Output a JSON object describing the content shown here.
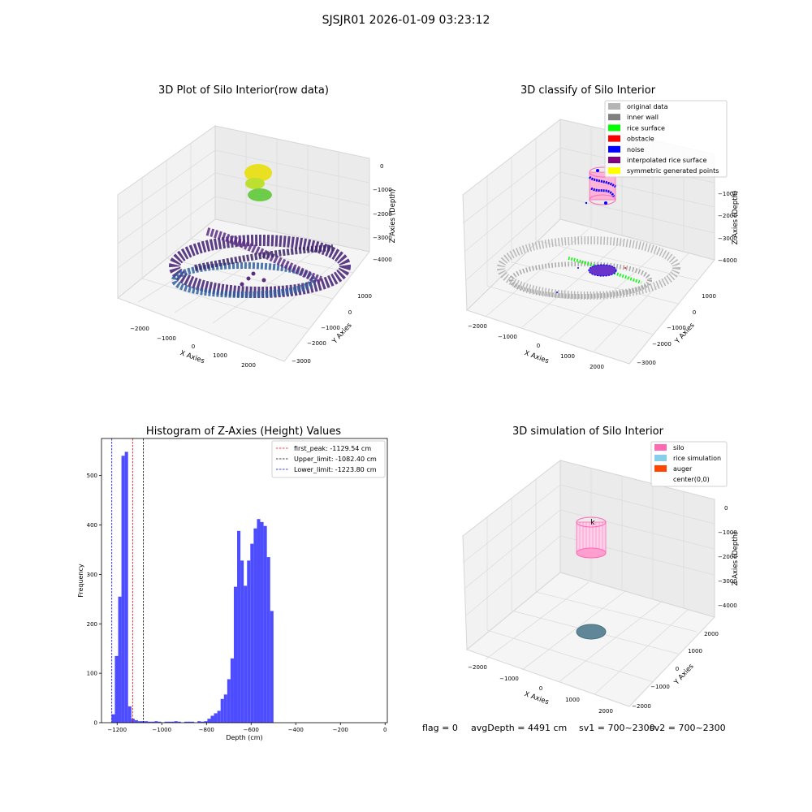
{
  "suptitle": "SJSJR01 2026-01-09 03:23:12",
  "panels": {
    "raw": {
      "title": "3D Plot of Silo Interior(row data)",
      "xlabel": "X Axies",
      "ylabel": "Y Axies",
      "zlabel": "Z Axies (Depth)",
      "xticks": [
        "−2000",
        "−1000",
        "0",
        "1000",
        "2000"
      ],
      "yticks": [
        "1000",
        "0",
        "−1000",
        "−2000",
        "−3000"
      ],
      "zticks": [
        "0",
        "−1000",
        "−2000",
        "−3000",
        "−4000"
      ]
    },
    "classify": {
      "title": "3D classify of Silo Interior",
      "xlabel": "X Axies",
      "ylabel": "Y Axies",
      "zlabel": "Z Axies (Depth)",
      "xticks": [
        "−2000",
        "−1000",
        "0",
        "1000",
        "2000"
      ],
      "yticks": [
        "1000",
        "0",
        "−1000",
        "−2000",
        "−3000"
      ],
      "zticks": [
        "−1000",
        "−2000",
        "−3000",
        "−4000"
      ],
      "legend": [
        {
          "label": "original data",
          "color": "#b4b4b4"
        },
        {
          "label": "inner wall",
          "color": "#808080"
        },
        {
          "label": "rice surface",
          "color": "#00ff00"
        },
        {
          "label": "obstacle",
          "color": "#ff0000"
        },
        {
          "label": "noise",
          "color": "#0000ff"
        },
        {
          "label": "interpolated rice surface",
          "color": "#800080"
        },
        {
          "label": "symmetric generated points",
          "color": "#ffff00"
        }
      ]
    },
    "simulation": {
      "title": "3D simulation of Silo Interior",
      "xlabel": "X Axies",
      "ylabel": "Y Axies",
      "zlabel": "Z Axies (Depth)",
      "xticks": [
        "−2000",
        "−1000",
        "0",
        "1000",
        "2000"
      ],
      "yticks": [
        "2000",
        "1000",
        "0",
        "−1000",
        "−2000"
      ],
      "zticks": [
        "0",
        "−1000",
        "−2000",
        "−3000",
        "−4000"
      ],
      "legend": [
        {
          "label": "silo",
          "color": "#ff69b4"
        },
        {
          "label": "rice simulation",
          "color": "#87ceeb"
        },
        {
          "label": "auger",
          "color": "#ff4500"
        },
        {
          "label": "center(0,0)",
          "color": "#ffffff"
        }
      ]
    }
  },
  "chart_data": {
    "type": "bar",
    "title": "Histogram of Z-Axies (Height) Values",
    "xlabel": "Depth (cm)",
    "ylabel": "Frequency",
    "xlim": [
      -1270,
      10
    ],
    "ylim": [
      0,
      575
    ],
    "xticks": [
      -1200,
      -1000,
      -800,
      -600,
      -400,
      -200,
      0
    ],
    "xtick_labels": [
      "−1200",
      "−1000",
      "−800",
      "−600",
      "−400",
      "−200",
      "0"
    ],
    "yticks": [
      0,
      100,
      200,
      300,
      400,
      500
    ],
    "bar_color": "#4d4dff",
    "bin_start": -1225,
    "bin_width": 14.8,
    "values": [
      17,
      135,
      255,
      540,
      548,
      33,
      8,
      5,
      3,
      3,
      3,
      2,
      2,
      3,
      2,
      0,
      2,
      2,
      2,
      3,
      2,
      0,
      2,
      2,
      2,
      0,
      3,
      2,
      3,
      8,
      14,
      19,
      24,
      48,
      57,
      88,
      130,
      275,
      388,
      328,
      277,
      328,
      362,
      393,
      412,
      406,
      398,
      335,
      226
    ],
    "vlines": [
      {
        "label": "first_peak: -1129.54 cm",
        "x": -1129.54,
        "color": "#ff0000"
      },
      {
        "label": "Upper_limit: -1082.40 cm",
        "x": -1082.4,
        "color": "#000000"
      },
      {
        "label": "Lower_limit: -1223.80 cm",
        "x": -1223.8,
        "color": "#0000ff"
      }
    ],
    "legend_position": "top-right"
  },
  "footer": {
    "flag": "flag = 0",
    "avg": "avgDepth = 4491 cm",
    "sv1": "sv1 = 700~2300",
    "sv2": "sv2 = 700~2300"
  }
}
